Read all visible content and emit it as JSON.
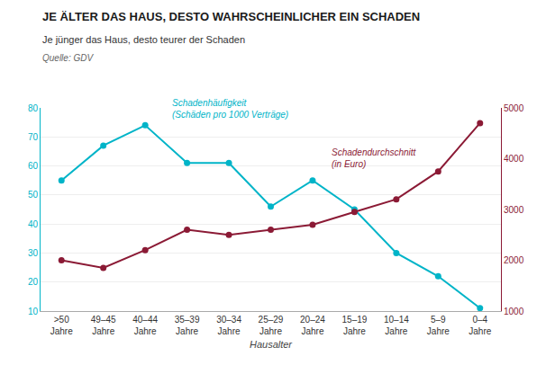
{
  "chart_data": {
    "type": "line",
    "title": "JE ÄLTER DAS HAUS, DESTO WAHRSCHEINLICHER EIN SCHADEN",
    "subtitle": "Je jünger das Haus, desto teurer der Schaden",
    "annotations": [
      "Quelle: GDV"
    ],
    "xlabel": "Hausalter",
    "categories": [
      ">50\nJahre",
      "49–45\nJahre",
      "40–44\nJahre",
      "35–39\nJahre",
      "30–34\nJahre",
      "25–29\nJahre",
      "20–24\nJahre",
      "15–19\nJahre",
      "10–14\nJahre",
      "5–9\nJahre",
      "0–4\nJahre"
    ],
    "series": [
      {
        "name": "Schadenhäufigkeit\n(Schäden pro 1000 Verträge)",
        "color": "#00B4C8",
        "axis": "y",
        "values": [
          55,
          67,
          74,
          61,
          61,
          46,
          55,
          45,
          30,
          22,
          11
        ]
      },
      {
        "name": "Schadendurchschnitt\n(in Euro)",
        "color": "#8B1A35",
        "axis": "y2",
        "values": [
          2000,
          1850,
          2200,
          2600,
          2500,
          2600,
          2700,
          2950,
          3200,
          3750,
          4700
        ]
      }
    ],
    "ylim": [
      10,
      80
    ],
    "yticks": [
      10,
      20,
      30,
      40,
      50,
      60,
      70,
      80
    ],
    "y2lim": [
      1000,
      5000
    ],
    "y2ticks": [
      1000,
      2000,
      3000,
      4000,
      5000
    ],
    "grid": true,
    "marker": "circle"
  }
}
